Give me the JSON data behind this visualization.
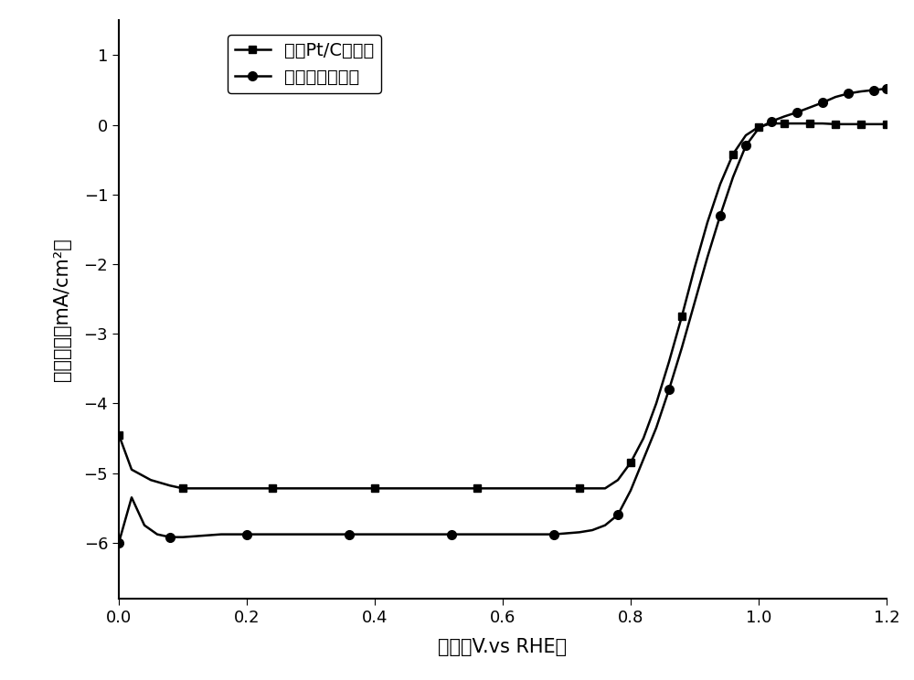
{
  "title": "",
  "xlabel": "电压（V.vs RHE）",
  "ylabel": "电流密度（mA/cm²）",
  "xlim": [
    0.0,
    1.2
  ],
  "ylim": [
    -6.8,
    1.5
  ],
  "yticks": [
    -6,
    -5,
    -4,
    -3,
    -2,
    -1,
    0,
    1
  ],
  "xticks": [
    0.0,
    0.2,
    0.4,
    0.6,
    0.8,
    1.0,
    1.2
  ],
  "legend1": "商业Pt/C催化剂",
  "legend2": "纳米杨桃催化剂",
  "line_color": "#000000",
  "bg_color": "#ffffff",
  "series1_x": [
    0.0,
    0.02,
    0.05,
    0.08,
    0.1,
    0.13,
    0.16,
    0.2,
    0.24,
    0.28,
    0.32,
    0.36,
    0.4,
    0.44,
    0.48,
    0.52,
    0.56,
    0.6,
    0.64,
    0.68,
    0.72,
    0.74,
    0.76,
    0.78,
    0.8,
    0.82,
    0.84,
    0.86,
    0.88,
    0.9,
    0.92,
    0.94,
    0.96,
    0.98,
    1.0,
    1.02,
    1.04,
    1.06,
    1.08,
    1.1,
    1.12,
    1.14,
    1.16,
    1.18,
    1.2
  ],
  "series1_y": [
    -4.45,
    -4.95,
    -5.1,
    -5.18,
    -5.22,
    -5.22,
    -5.22,
    -5.22,
    -5.22,
    -5.22,
    -5.22,
    -5.22,
    -5.22,
    -5.22,
    -5.22,
    -5.22,
    -5.22,
    -5.22,
    -5.22,
    -5.22,
    -5.22,
    -5.22,
    -5.22,
    -5.1,
    -4.85,
    -4.5,
    -4.0,
    -3.4,
    -2.75,
    -2.05,
    -1.4,
    -0.85,
    -0.42,
    -0.15,
    -0.03,
    0.02,
    0.02,
    0.02,
    0.02,
    0.02,
    0.01,
    0.01,
    0.01,
    0.01,
    0.01
  ],
  "series2_x": [
    0.0,
    0.02,
    0.04,
    0.06,
    0.08,
    0.1,
    0.13,
    0.16,
    0.2,
    0.24,
    0.28,
    0.32,
    0.36,
    0.4,
    0.44,
    0.48,
    0.52,
    0.56,
    0.6,
    0.64,
    0.68,
    0.72,
    0.74,
    0.76,
    0.78,
    0.8,
    0.82,
    0.84,
    0.86,
    0.88,
    0.9,
    0.92,
    0.94,
    0.96,
    0.98,
    1.0,
    1.02,
    1.04,
    1.06,
    1.08,
    1.1,
    1.12,
    1.14,
    1.16,
    1.18,
    1.2
  ],
  "series2_y": [
    -6.0,
    -5.35,
    -5.75,
    -5.88,
    -5.92,
    -5.92,
    -5.9,
    -5.88,
    -5.88,
    -5.88,
    -5.88,
    -5.88,
    -5.88,
    -5.88,
    -5.88,
    -5.88,
    -5.88,
    -5.88,
    -5.88,
    -5.88,
    -5.88,
    -5.85,
    -5.82,
    -5.75,
    -5.6,
    -5.25,
    -4.8,
    -4.35,
    -3.8,
    -3.2,
    -2.55,
    -1.9,
    -1.3,
    -0.75,
    -0.3,
    -0.05,
    0.05,
    0.12,
    0.18,
    0.25,
    0.32,
    0.4,
    0.45,
    0.48,
    0.5,
    0.52
  ],
  "marker_indices1": [
    0,
    4,
    8,
    12,
    16,
    20,
    24,
    28,
    32,
    34,
    36,
    38,
    40,
    42,
    44
  ],
  "marker_indices2": [
    0,
    4,
    8,
    12,
    16,
    20,
    24,
    28,
    32,
    34,
    36,
    38,
    40,
    42,
    44,
    45
  ]
}
